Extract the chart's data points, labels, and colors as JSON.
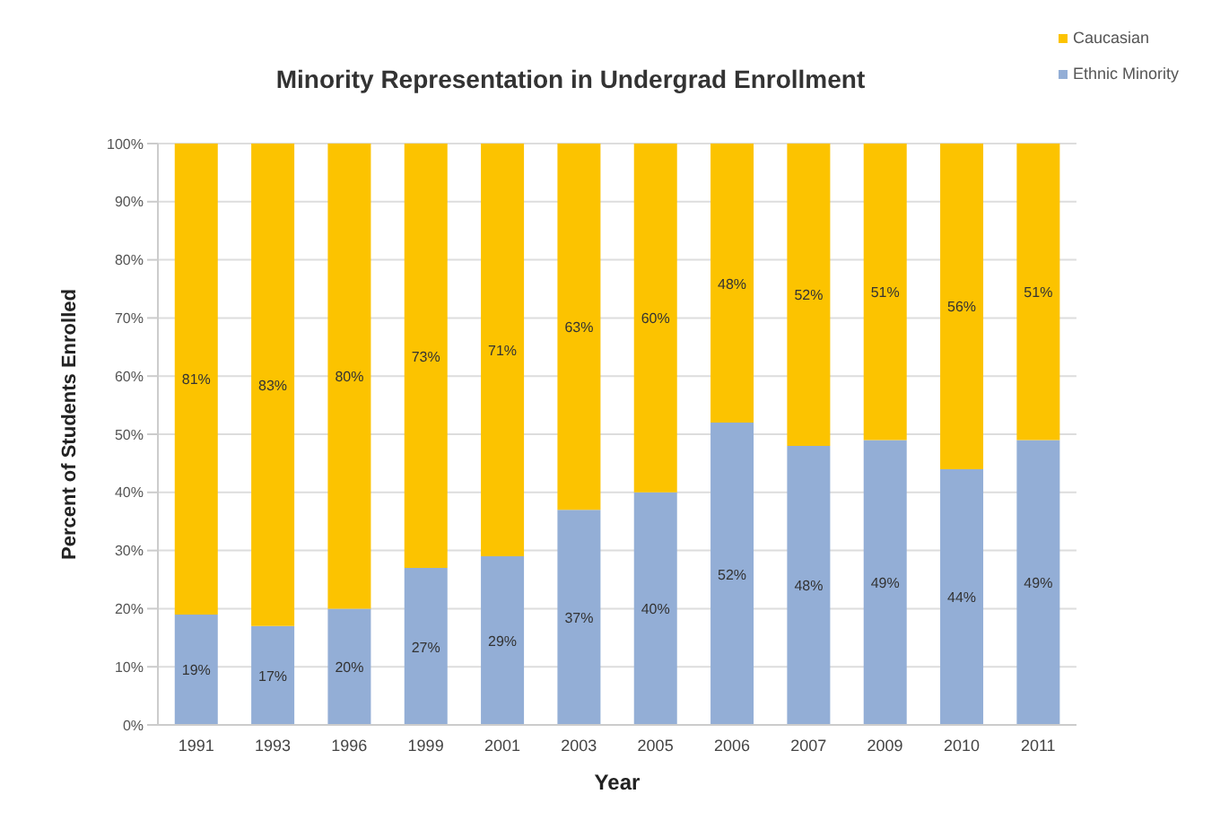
{
  "chart_data": {
    "type": "bar",
    "title": "Minority Representation in Undergrad Enrollment",
    "xlabel": "Year",
    "ylabel": "Percent of  Students Enrolled",
    "categories": [
      "1991",
      "1993",
      "1996",
      "1999",
      "2001",
      "2003",
      "2005",
      "2006",
      "2007",
      "2009",
      "2010",
      "2011"
    ],
    "stacked": true,
    "legend": "top right",
    "grid": "y",
    "ylim": [
      0,
      100
    ],
    "yticks": [
      {
        "value": 0,
        "label": "0%"
      },
      {
        "value": 10,
        "label": "10%"
      },
      {
        "value": 20,
        "label": "20%"
      },
      {
        "value": 30,
        "label": "30%"
      },
      {
        "value": 40,
        "label": "40%"
      },
      {
        "value": 50,
        "label": "50%"
      },
      {
        "value": 60,
        "label": "60%"
      },
      {
        "value": 70,
        "label": "70%"
      },
      {
        "value": 80,
        "label": "80%"
      },
      {
        "value": 90,
        "label": "90%"
      },
      {
        "value": 100,
        "label": "100%"
      }
    ],
    "series": [
      {
        "name": "Ethnic Minority",
        "color": "#93aed6",
        "values": [
          19,
          17,
          20,
          27,
          29,
          37,
          40,
          52,
          48,
          49,
          44,
          49
        ],
        "value_labels": [
          "19%",
          "17%",
          "20%",
          "27%",
          "29%",
          "37%",
          "40%",
          "52%",
          "48%",
          "49%",
          "44%",
          "49%"
        ]
      },
      {
        "name": "Caucasian",
        "color": "#fcc300",
        "values": [
          81,
          83,
          80,
          73,
          71,
          63,
          60,
          48,
          52,
          51,
          56,
          51
        ],
        "value_labels": [
          "81%",
          "83%",
          "80%",
          "73%",
          "71%",
          "63%",
          "60%",
          "48%",
          "52%",
          "51%",
          "56%",
          "51%"
        ]
      }
    ]
  }
}
